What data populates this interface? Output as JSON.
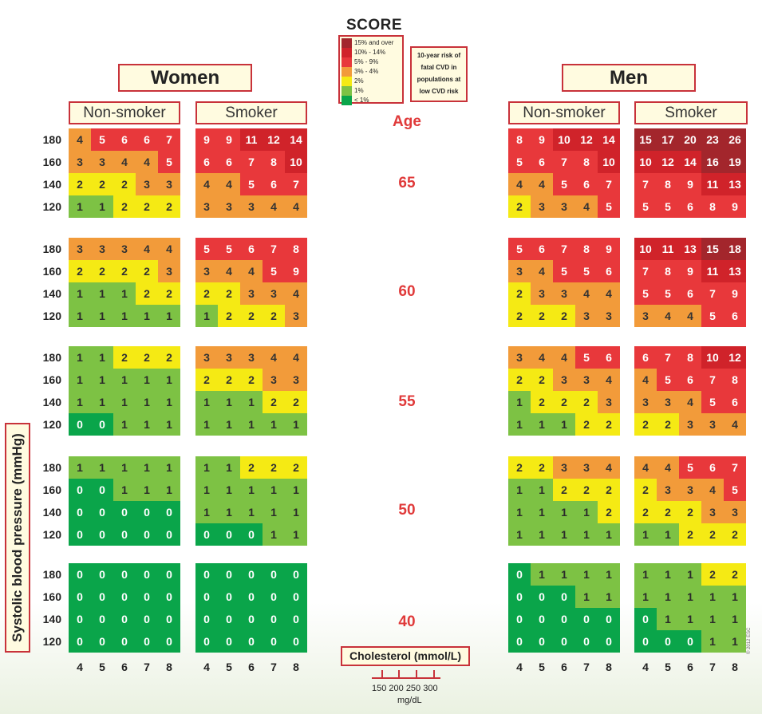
{
  "header": {
    "score_logo": "SCORE",
    "legend": [
      {
        "label": "15% and over",
        "color": "#a3262c"
      },
      {
        "label": "10% - 14%",
        "color": "#d0232a"
      },
      {
        "label": "5% - 9%",
        "color": "#e8383b"
      },
      {
        "label": "3% - 4%",
        "color": "#f29b3a"
      },
      {
        "label": "2%",
        "color": "#f5ea14"
      },
      {
        "label": "1%",
        "color": "#7dc244"
      },
      {
        "label": "< 1%",
        "color": "#0aa54a"
      }
    ],
    "risk_note_lines": [
      "10-year risk of",
      "fatal CVD in",
      "populations at",
      "low CVD risk"
    ]
  },
  "labels": {
    "women": "Women",
    "men": "Men",
    "non_smoker": "Non-smoker",
    "smoker": "Smoker",
    "age": "Age",
    "sbp": "Systolic blood pressure (mmHg)",
    "cholesterol": "Cholesterol (mmol/L)",
    "mgdl_ticks": "150 200 250 300",
    "mgdl_unit": "mg/dL",
    "copyright": "© 2012 ESC"
  },
  "chart_data": {
    "type": "heatmap",
    "title": "SCORE",
    "x_label": "Cholesterol (mmol/L)",
    "y_label": "Systolic blood pressure (mmHg)",
    "cholesterol": [
      4,
      5,
      6,
      7,
      8
    ],
    "sbp": [
      180,
      160,
      140,
      120
    ],
    "ages": [
      65,
      60,
      55,
      50,
      40
    ],
    "color_scale": [
      {
        "min": 15,
        "color": "#a3262c"
      },
      {
        "min": 10,
        "color": "#d0232a"
      },
      {
        "min": 5,
        "color": "#e8383b"
      },
      {
        "min": 3,
        "color": "#f29b3a"
      },
      {
        "min": 2,
        "color": "#f5ea14"
      },
      {
        "min": 1,
        "color": "#7dc244"
      },
      {
        "min": 0,
        "color": "#0aa54a"
      }
    ],
    "panels": [
      {
        "sex": "Women",
        "smoking": "Non-smoker",
        "grids": [
          [
            [
              4,
              5,
              6,
              6,
              7
            ],
            [
              3,
              3,
              4,
              4,
              5
            ],
            [
              2,
              2,
              2,
              3,
              3
            ],
            [
              1,
              1,
              2,
              2,
              2
            ]
          ],
          [
            [
              3,
              3,
              3,
              4,
              4
            ],
            [
              2,
              2,
              2,
              2,
              3
            ],
            [
              1,
              1,
              1,
              2,
              2
            ],
            [
              1,
              1,
              1,
              1,
              1
            ]
          ],
          [
            [
              1,
              1,
              2,
              2,
              2
            ],
            [
              1,
              1,
              1,
              1,
              1
            ],
            [
              1,
              1,
              1,
              1,
              1
            ],
            [
              0,
              0,
              1,
              1,
              1
            ]
          ],
          [
            [
              1,
              1,
              1,
              1,
              1
            ],
            [
              0,
              0,
              1,
              1,
              1
            ],
            [
              0,
              0,
              0,
              0,
              0
            ],
            [
              0,
              0,
              0,
              0,
              0
            ]
          ],
          [
            [
              0,
              0,
              0,
              0,
              0
            ],
            [
              0,
              0,
              0,
              0,
              0
            ],
            [
              0,
              0,
              0,
              0,
              0
            ],
            [
              0,
              0,
              0,
              0,
              0
            ]
          ]
        ]
      },
      {
        "sex": "Women",
        "smoking": "Smoker",
        "grids": [
          [
            [
              9,
              9,
              11,
              12,
              14
            ],
            [
              6,
              6,
              7,
              8,
              10
            ],
            [
              4,
              4,
              5,
              6,
              7
            ],
            [
              3,
              3,
              3,
              4,
              4
            ]
          ],
          [
            [
              5,
              5,
              6,
              7,
              8
            ],
            [
              3,
              4,
              4,
              5,
              9
            ],
            [
              2,
              2,
              3,
              3,
              4
            ],
            [
              1,
              2,
              2,
              2,
              3
            ]
          ],
          [
            [
              3,
              3,
              3,
              4,
              4
            ],
            [
              2,
              2,
              2,
              3,
              3
            ],
            [
              1,
              1,
              1,
              2,
              2
            ],
            [
              1,
              1,
              1,
              1,
              1
            ]
          ],
          [
            [
              1,
              1,
              2,
              2,
              2
            ],
            [
              1,
              1,
              1,
              1,
              1
            ],
            [
              1,
              1,
              1,
              1,
              1
            ],
            [
              0,
              0,
              0,
              1,
              1
            ]
          ],
          [
            [
              0,
              0,
              0,
              0,
              0
            ],
            [
              0,
              0,
              0,
              0,
              0
            ],
            [
              0,
              0,
              0,
              0,
              0
            ],
            [
              0,
              0,
              0,
              0,
              0
            ]
          ]
        ]
      },
      {
        "sex": "Men",
        "smoking": "Non-smoker",
        "grids": [
          [
            [
              8,
              9,
              10,
              12,
              14
            ],
            [
              5,
              6,
              7,
              8,
              10
            ],
            [
              4,
              4,
              5,
              6,
              7
            ],
            [
              2,
              3,
              3,
              4,
              5
            ]
          ],
          [
            [
              5,
              6,
              7,
              8,
              9
            ],
            [
              3,
              4,
              5,
              5,
              6
            ],
            [
              2,
              3,
              3,
              4,
              4
            ],
            [
              2,
              2,
              2,
              3,
              3
            ]
          ],
          [
            [
              3,
              4,
              4,
              5,
              6
            ],
            [
              2,
              2,
              3,
              3,
              4
            ],
            [
              1,
              2,
              2,
              2,
              3
            ],
            [
              1,
              1,
              1,
              2,
              2
            ]
          ],
          [
            [
              2,
              2,
              3,
              3,
              4
            ],
            [
              1,
              1,
              2,
              2,
              2
            ],
            [
              1,
              1,
              1,
              1,
              2
            ],
            [
              1,
              1,
              1,
              1,
              1
            ]
          ],
          [
            [
              0,
              1,
              1,
              1,
              1
            ],
            [
              0,
              0,
              0,
              1,
              1
            ],
            [
              0,
              0,
              0,
              0,
              0
            ],
            [
              0,
              0,
              0,
              0,
              0
            ]
          ]
        ]
      },
      {
        "sex": "Men",
        "smoking": "Smoker",
        "grids": [
          [
            [
              15,
              17,
              20,
              23,
              26
            ],
            [
              10,
              12,
              14,
              16,
              19
            ],
            [
              7,
              8,
              9,
              11,
              13
            ],
            [
              5,
              5,
              6,
              8,
              9
            ]
          ],
          [
            [
              10,
              11,
              13,
              15,
              18
            ],
            [
              7,
              8,
              9,
              11,
              13
            ],
            [
              5,
              5,
              6,
              7,
              9
            ],
            [
              3,
              4,
              4,
              5,
              6
            ]
          ],
          [
            [
              6,
              7,
              8,
              10,
              12
            ],
            [
              4,
              5,
              6,
              7,
              8
            ],
            [
              3,
              3,
              4,
              5,
              6
            ],
            [
              2,
              2,
              3,
              3,
              4
            ]
          ],
          [
            [
              4,
              4,
              5,
              6,
              7
            ],
            [
              2,
              3,
              3,
              4,
              5
            ],
            [
              2,
              2,
              2,
              3,
              3
            ],
            [
              1,
              1,
              2,
              2,
              2
            ]
          ],
          [
            [
              1,
              1,
              1,
              2,
              2
            ],
            [
              1,
              1,
              1,
              1,
              1
            ],
            [
              0,
              1,
              1,
              1,
              1
            ],
            [
              0,
              0,
              0,
              1,
              1
            ]
          ]
        ]
      }
    ]
  }
}
